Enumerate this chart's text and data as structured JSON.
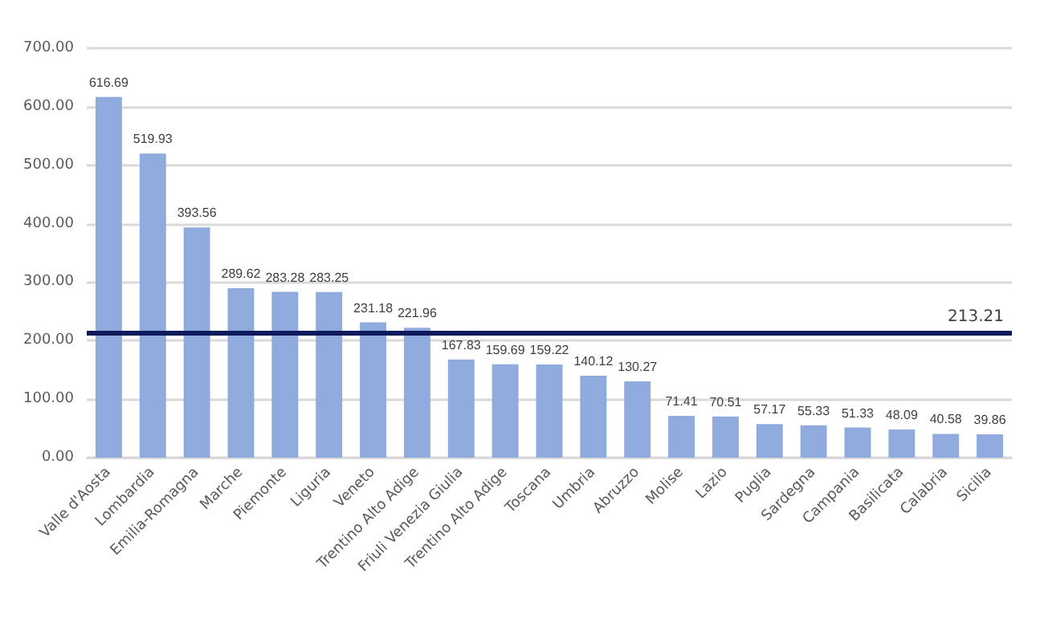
{
  "chart_data": {
    "type": "bar",
    "categories": [
      "Valle d'Aosta",
      "Lombardia",
      "Emilia-Romagna",
      "Marche",
      "Piemonte",
      "Liguria",
      "Veneto",
      "Trentino Alto Adige",
      "Friuli Venezia Giulia",
      "Trentino Alto Adige",
      "Toscana",
      "Umbria",
      "Abruzzo",
      "Molise",
      "Lazio",
      "Puglia",
      "Sardegna",
      "Campania",
      "Basilicata",
      "Calabria",
      "Sicilia"
    ],
    "values": [
      616.69,
      519.93,
      393.56,
      289.62,
      283.28,
      283.25,
      231.18,
      221.96,
      167.83,
      159.69,
      159.22,
      140.12,
      130.27,
      71.41,
      70.51,
      57.17,
      55.33,
      51.33,
      48.09,
      40.58,
      39.86
    ],
    "color": "#8faadc",
    "ylim": [
      0,
      700
    ],
    "yticks": [
      {
        "value": 0,
        "label": "0.00"
      },
      {
        "value": 100,
        "label": "100.00"
      },
      {
        "value": 200,
        "label": "200.00"
      },
      {
        "value": 300,
        "label": "300.00"
      },
      {
        "value": 400,
        "label": "400.00"
      },
      {
        "value": 500,
        "label": "500.00"
      },
      {
        "value": 600,
        "label": "600.00"
      },
      {
        "value": 700,
        "label": "700.00"
      }
    ],
    "ref_lines": [
      {
        "axis": "y",
        "value": 213.21,
        "label": "213.21",
        "color": "#0d1a5c"
      }
    ],
    "data_labels": true,
    "grid": "y"
  }
}
